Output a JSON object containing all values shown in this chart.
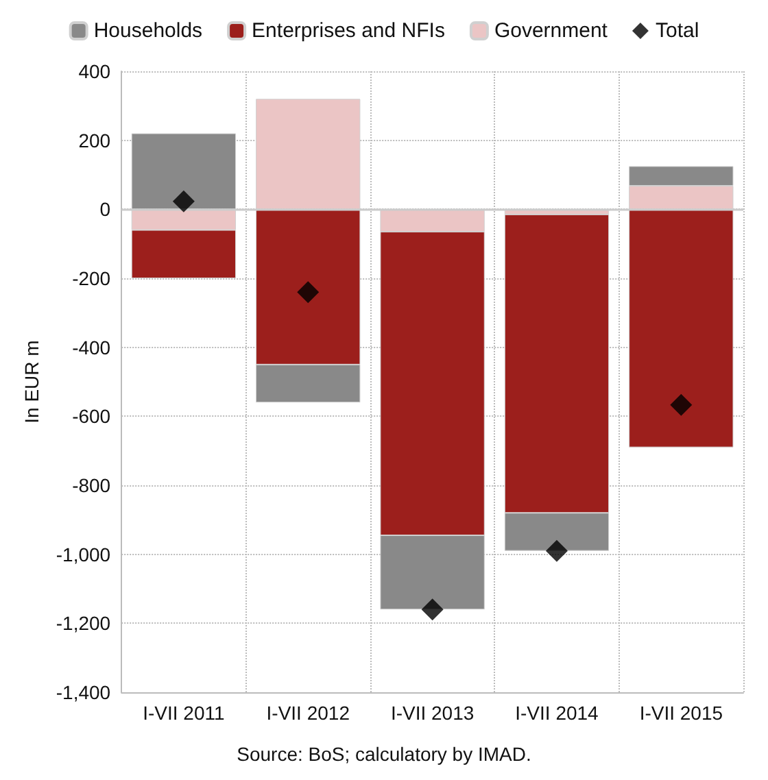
{
  "chart_data": {
    "type": "bar",
    "stacked": true,
    "ylabel": "In EUR m",
    "categories": [
      "I-VII 2011",
      "I-VII 2012",
      "I-VII 2013",
      "I-VII 2014",
      "I-VII 2015"
    ],
    "series": [
      {
        "name": "Government",
        "color": "#ebc5c5",
        "values": [
          -60,
          320,
          -65,
          -15,
          68
        ]
      },
      {
        "name": "Enterprises and NFIs",
        "color": "#9c1f1c",
        "values": [
          -140,
          -450,
          -880,
          -865,
          -690
        ]
      },
      {
        "name": "Households",
        "color": "#898989",
        "values": [
          220,
          -110,
          -215,
          -110,
          57
        ]
      },
      {
        "name": "Total",
        "type": "scatter",
        "marker": "diamond",
        "color": "#000000",
        "values": [
          23,
          -240,
          -1160,
          -990,
          -567
        ]
      }
    ],
    "ylim": [
      -1400,
      400
    ],
    "yticks": [
      {
        "value": -1400,
        "label": "-1,400"
      },
      {
        "value": -1200,
        "label": "-1,200"
      },
      {
        "value": -1000,
        "label": "-1,000"
      },
      -800,
      -600,
      -400,
      -200,
      0,
      200,
      400
    ],
    "grid": true,
    "legend": "top",
    "annotations": [
      "Source: BoS; calculatory by IMAD."
    ]
  }
}
